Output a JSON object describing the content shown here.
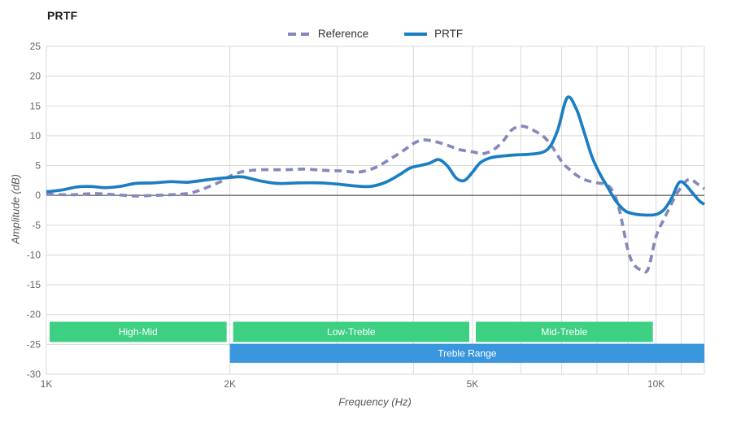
{
  "header": {
    "title": "PRTF"
  },
  "legend": [
    {
      "label": "Reference",
      "color": "#8588bb",
      "style": "dashed"
    },
    {
      "label": "PRTF",
      "color": "#1b7ec2",
      "style": "solid"
    }
  ],
  "chart_data": {
    "type": "line",
    "title": "PRTF",
    "xlabel": "Frequency (Hz)",
    "ylabel": "Amplitude (dB)",
    "x_scale": "log",
    "xlim": [
      1000,
      12000
    ],
    "ylim": [
      -30,
      25
    ],
    "grid": true,
    "grid_step_hz": 1000,
    "y_tick_step": 5,
    "y_ticks": [
      25,
      20,
      15,
      10,
      5,
      0,
      -5,
      -10,
      -15,
      -20,
      -25,
      -30
    ],
    "x_ticks": [
      {
        "value": 1000,
        "label": "1K"
      },
      {
        "value": 2000,
        "label": "2K"
      },
      {
        "value": 5000,
        "label": "5K"
      },
      {
        "value": 10000,
        "label": "10K"
      }
    ],
    "zero_line": true,
    "legend_position": "top-center",
    "colors": {
      "grid": "#d9d9d9",
      "zero_line": "#3a3a3a",
      "band_green": "#3dd082",
      "band_blue": "#3a97dd"
    },
    "series": [
      {
        "name": "Reference",
        "color": "#8588bb",
        "dash": true,
        "points": [
          [
            1000,
            0.2
          ],
          [
            1100,
            0.1
          ],
          [
            1200,
            0.3
          ],
          [
            1300,
            0.1
          ],
          [
            1400,
            -0.1
          ],
          [
            1500,
            0
          ],
          [
            1600,
            0.1
          ],
          [
            1700,
            0.3
          ],
          [
            1780,
            0.8
          ],
          [
            1860,
            1.6
          ],
          [
            1930,
            2.3
          ],
          [
            2000,
            3.2
          ],
          [
            2100,
            4
          ],
          [
            2250,
            4.3
          ],
          [
            2450,
            4.3
          ],
          [
            2650,
            4.4
          ],
          [
            2850,
            4.2
          ],
          [
            3050,
            4.1
          ],
          [
            3250,
            3.9
          ],
          [
            3450,
            4.6
          ],
          [
            3650,
            6
          ],
          [
            3850,
            7.5
          ],
          [
            4000,
            8.7
          ],
          [
            4150,
            9.3
          ],
          [
            4350,
            9
          ],
          [
            4550,
            8.4
          ],
          [
            4750,
            7.7
          ],
          [
            5000,
            7.3
          ],
          [
            5200,
            7
          ],
          [
            5400,
            7.6
          ],
          [
            5600,
            9
          ],
          [
            5800,
            11
          ],
          [
            6000,
            11.6
          ],
          [
            6150,
            11.4
          ],
          [
            6350,
            10.7
          ],
          [
            6550,
            9.8
          ],
          [
            6750,
            8.2
          ],
          [
            7000,
            5.7
          ],
          [
            7200,
            4.4
          ],
          [
            7450,
            3.2
          ],
          [
            7700,
            2.5
          ],
          [
            8000,
            2.1
          ],
          [
            8300,
            1.8
          ],
          [
            8500,
            0.6
          ],
          [
            8700,
            -2.3
          ],
          [
            9000,
            -9.3
          ],
          [
            9200,
            -11.6
          ],
          [
            9450,
            -12.5
          ],
          [
            9700,
            -12.4
          ],
          [
            10000,
            -6.9
          ],
          [
            10300,
            -4
          ],
          [
            10600,
            -1.4
          ],
          [
            10800,
            0.2
          ],
          [
            11000,
            1.4
          ],
          [
            11200,
            2.4
          ],
          [
            11400,
            2.7
          ],
          [
            11700,
            1.9
          ],
          [
            12000,
            1.1
          ]
        ]
      },
      {
        "name": "PRTF",
        "color": "#1b7ec2",
        "dash": false,
        "points": [
          [
            1000,
            0.6
          ],
          [
            1060,
            0.9
          ],
          [
            1120,
            1.4
          ],
          [
            1180,
            1.5
          ],
          [
            1250,
            1.3
          ],
          [
            1320,
            1.5
          ],
          [
            1400,
            2
          ],
          [
            1500,
            2.1
          ],
          [
            1600,
            2.3
          ],
          [
            1700,
            2.2
          ],
          [
            1800,
            2.5
          ],
          [
            1900,
            2.8
          ],
          [
            2000,
            3
          ],
          [
            2100,
            3.1
          ],
          [
            2250,
            2.4
          ],
          [
            2400,
            2
          ],
          [
            2600,
            2.1
          ],
          [
            2800,
            2.1
          ],
          [
            3000,
            1.9
          ],
          [
            3200,
            1.6
          ],
          [
            3400,
            1.5
          ],
          [
            3600,
            2.2
          ],
          [
            3800,
            3.5
          ],
          [
            3950,
            4.6
          ],
          [
            4100,
            5
          ],
          [
            4250,
            5.4
          ],
          [
            4400,
            6
          ],
          [
            4550,
            4.9
          ],
          [
            4700,
            2.9
          ],
          [
            4850,
            2.5
          ],
          [
            5000,
            3.9
          ],
          [
            5150,
            5.5
          ],
          [
            5350,
            6.3
          ],
          [
            5600,
            6.6
          ],
          [
            5900,
            6.8
          ],
          [
            6200,
            6.9
          ],
          [
            6500,
            7.2
          ],
          [
            6700,
            8.2
          ],
          [
            6900,
            11
          ],
          [
            7150,
            16.4
          ],
          [
            7400,
            14.5
          ],
          [
            7600,
            11
          ],
          [
            7850,
            6.5
          ],
          [
            8100,
            3.5
          ],
          [
            8350,
            1.2
          ],
          [
            8600,
            -1
          ],
          [
            8900,
            -2.6
          ],
          [
            9200,
            -3.1
          ],
          [
            9600,
            -3.3
          ],
          [
            10000,
            -3.2
          ],
          [
            10300,
            -2.4
          ],
          [
            10600,
            -0.5
          ],
          [
            10850,
            1.8
          ],
          [
            11000,
            2.3
          ],
          [
            11200,
            1.7
          ],
          [
            11500,
            0.3
          ],
          [
            11800,
            -1
          ],
          [
            12000,
            -1.5
          ]
        ]
      }
    ],
    "band_rows": {
      "upper": {
        "top_db": -21.2,
        "bottom_db": -24.6
      },
      "lower": {
        "top_db": -24.9,
        "bottom_db": -28.1
      }
    },
    "bands": [
      {
        "label": "High-Mid",
        "from": 1000,
        "to": 2000,
        "color": "#3dd082",
        "row": "upper"
      },
      {
        "label": "Low-Treble",
        "from": 2000,
        "to": 5000,
        "color": "#3dd082",
        "row": "upper"
      },
      {
        "label": "Mid-Treble",
        "from": 5000,
        "to": 10000,
        "color": "#3dd082",
        "row": "upper"
      },
      {
        "label": "Treble Range",
        "from": 2000,
        "to": 12000,
        "color": "#3a97dd",
        "row": "lower"
      }
    ]
  }
}
